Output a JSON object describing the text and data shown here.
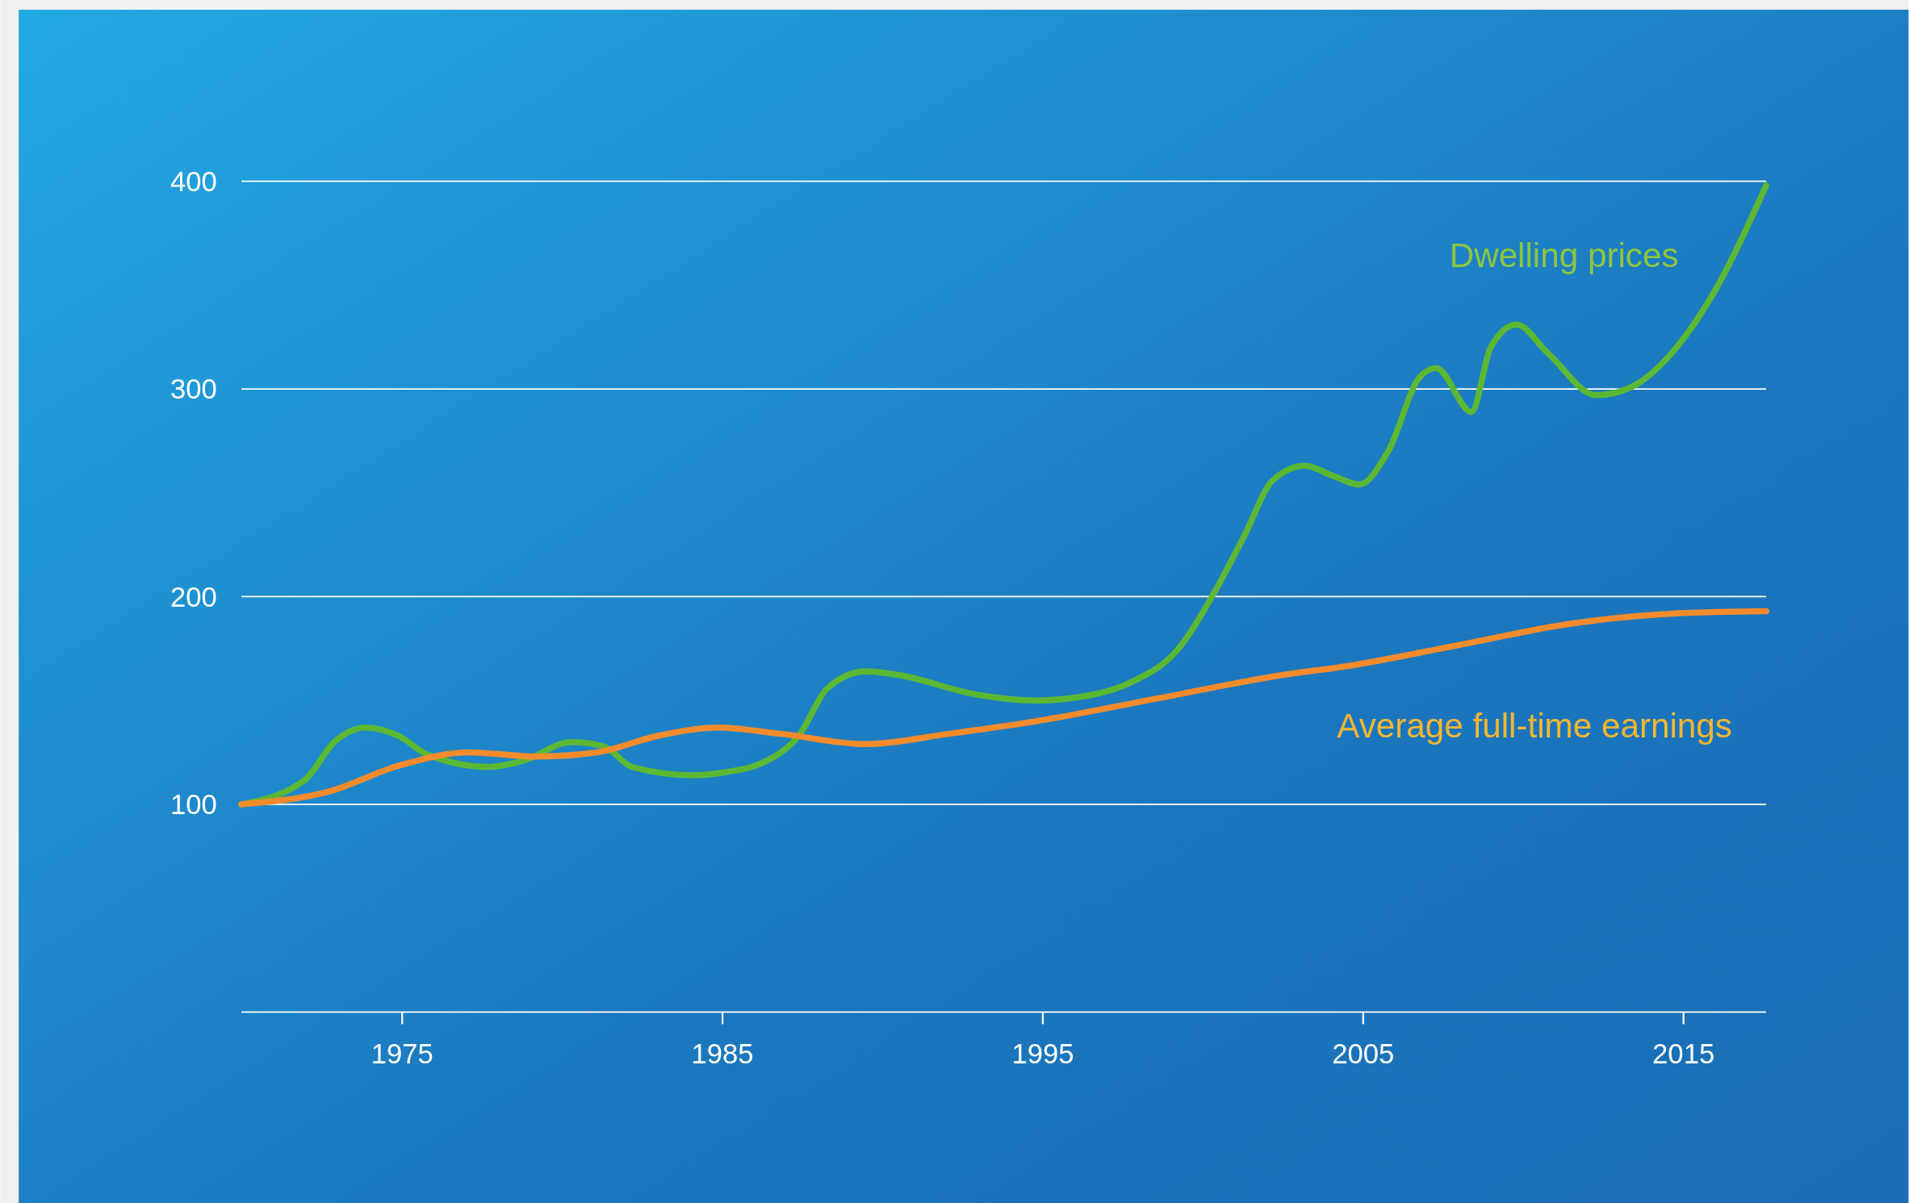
{
  "chart_data": {
    "type": "line",
    "xlim": [
      1970,
      2017.6
    ],
    "xticks": [
      1975,
      1985,
      1995,
      2005,
      2015
    ],
    "ylim": [
      0,
      400
    ],
    "yticks": [
      100,
      200,
      300,
      400
    ],
    "grid": "y",
    "legend": false,
    "marker": "none",
    "line_style": "solid",
    "series": [
      {
        "name": "Dwelling prices",
        "color": "#5cb833",
        "x": [
          1970,
          1972,
          1972.9,
          1973.9,
          1974.9,
          1975.8,
          1977.7,
          1978.8,
          1980.3,
          1981.3,
          1982.2,
          1984.1,
          1984.9,
          1986.4,
          1987.4,
          1988.3,
          1989.5,
          1990.6,
          1992.9,
          1994.8,
          1996.3,
          1997.8,
          1999.2,
          2000.3,
          2001.3,
          2002.2,
          2003.2,
          2004.1,
          2004.9,
          2005.8,
          2006.8,
          2007.3,
          2008.4,
          2009,
          2009.8,
          2010.8,
          2012.3,
          2013.4,
          2014.8,
          2016.1,
          2017.6
        ],
        "values": [
          100,
          112,
          130,
          137,
          133,
          124,
          118,
          121,
          130,
          128,
          118,
          114,
          115,
          121,
          133,
          156,
          164,
          162,
          153,
          150,
          152,
          159,
          174,
          200,
          229,
          256,
          263,
          258,
          254,
          270,
          306,
          310,
          289,
          320,
          331,
          317,
          297,
          301,
          320,
          350,
          398
        ]
      },
      {
        "name": "Average full-time earnings",
        "color": "#f68b2c",
        "x": [
          1970,
          1972.7,
          1975,
          1977.1,
          1979.2,
          1981.1,
          1983,
          1984.9,
          1986.8,
          1989.5,
          1992.1,
          1994.8,
          1998.6,
          2002.4,
          2004.7,
          2008.1,
          2011.5,
          2014.9,
          2017.6
        ],
        "values": [
          100,
          106,
          119,
          125,
          123,
          125,
          133,
          137,
          134,
          129,
          134,
          140,
          151,
          162,
          167,
          177,
          187,
          192,
          193
        ]
      }
    ]
  }
}
